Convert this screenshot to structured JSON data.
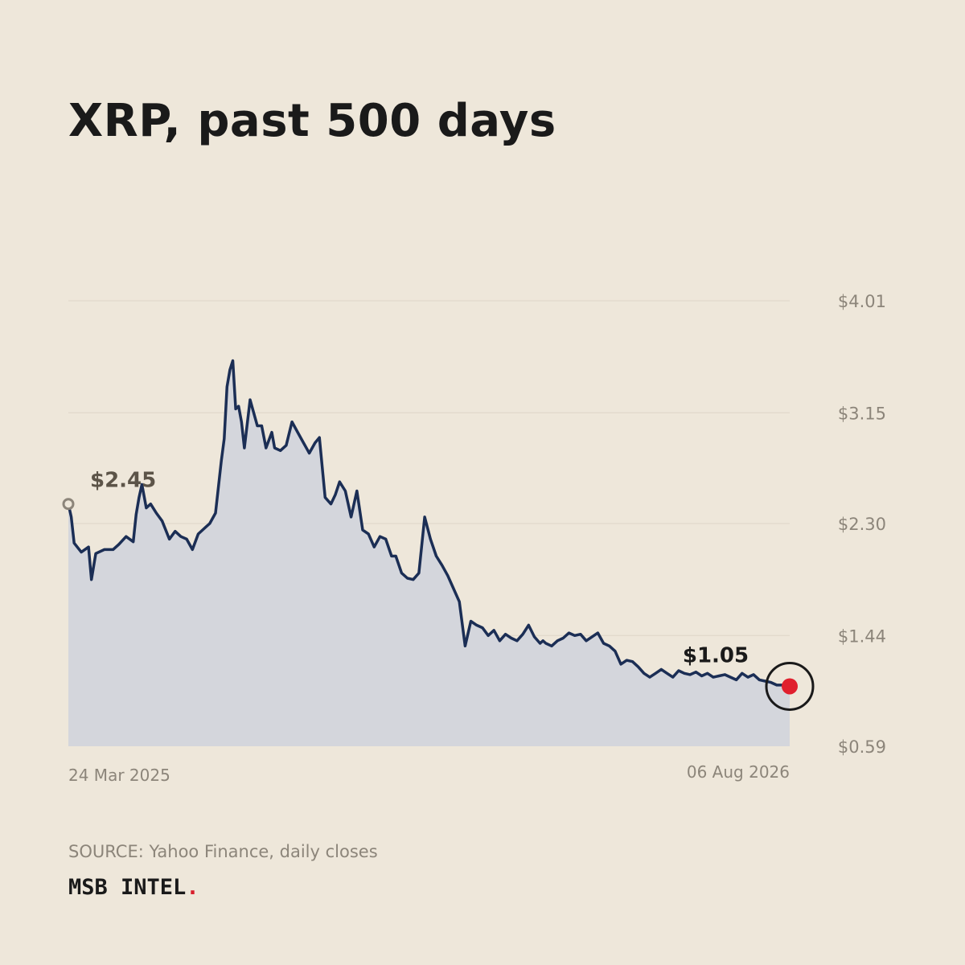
{
  "title": "XRP, past 500 days",
  "source": "SOURCE: Yahoo Finance, daily closes",
  "brand": {
    "name": "MSB INTEL",
    "dot": "."
  },
  "colors": {
    "background": "#EEE7DA",
    "line": "#1B2E55",
    "area": "#D4D6DC",
    "gridline": "#DDD5C8",
    "axis_text": "#8C857A",
    "start_marker": "#8C857A",
    "start_label": "#5C5448",
    "end_marker": "#E0202E",
    "end_label": "#1A1A1A",
    "brand_dot": "#D81E2C"
  },
  "chart_data": {
    "type": "area",
    "ylim": [
      0.59,
      4.01
    ],
    "y_ticks": [
      "$4.01",
      "$3.15",
      "$2.30",
      "$1.44",
      "$0.59"
    ],
    "y_tick_values": [
      4.01,
      3.15,
      2.3,
      1.44,
      0.59
    ],
    "x_labels": [
      "24 Mar 2025",
      "06 Aug 2026"
    ],
    "x_domain": [
      "2025-03-24",
      "2026-08-06"
    ],
    "grid": true,
    "start_value_label": "$2.45",
    "end_value_label": "$1.05",
    "series": [
      {
        "x": [
          "2025-03-24",
          "2025-03-26",
          "2025-03-28",
          "2025-04-02",
          "2025-04-07",
          "2025-04-09",
          "2025-04-12",
          "2025-04-18",
          "2025-04-24",
          "2025-04-28",
          "2025-05-03",
          "2025-05-08",
          "2025-05-10",
          "2025-05-12",
          "2025-05-14",
          "2025-05-17",
          "2025-05-20",
          "2025-05-24",
          "2025-05-28",
          "2025-06-02",
          "2025-06-06",
          "2025-06-10",
          "2025-06-14",
          "2025-06-18",
          "2025-06-22",
          "2025-06-26",
          "2025-06-30",
          "2025-07-04",
          "2025-07-08",
          "2025-07-10",
          "2025-07-12",
          "2025-07-14",
          "2025-07-16",
          "2025-07-18",
          "2025-07-20",
          "2025-07-22",
          "2025-07-24",
          "2025-07-28",
          "2025-08-02",
          "2025-08-05",
          "2025-08-08",
          "2025-08-12",
          "2025-08-14",
          "2025-08-18",
          "2025-08-22",
          "2025-08-26",
          "2025-08-30",
          "2025-09-03",
          "2025-09-07",
          "2025-09-11",
          "2025-09-14",
          "2025-09-18",
          "2025-09-22",
          "2025-09-25",
          "2025-09-28",
          "2025-10-02",
          "2025-10-06",
          "2025-10-10",
          "2025-10-12",
          "2025-10-14",
          "2025-10-18",
          "2025-10-22",
          "2025-10-26",
          "2025-10-30",
          "2025-11-03",
          "2025-11-06",
          "2025-11-10",
          "2025-11-14",
          "2025-11-18",
          "2025-11-22",
          "2025-11-26",
          "2025-11-30",
          "2025-12-04",
          "2025-12-08",
          "2025-12-12",
          "2025-12-16",
          "2025-12-20",
          "2025-12-24",
          "2025-12-28",
          "2026-01-01",
          "2026-01-05",
          "2026-01-09",
          "2026-01-13",
          "2026-01-17",
          "2026-01-21",
          "2026-01-25",
          "2026-01-29",
          "2026-02-02",
          "2026-02-06",
          "2026-02-10",
          "2026-02-14",
          "2026-02-16",
          "2026-02-18",
          "2026-02-22",
          "2026-02-26",
          "2026-03-02",
          "2026-03-06",
          "2026-03-10",
          "2026-03-14",
          "2026-03-18",
          "2026-03-22",
          "2026-03-26",
          "2026-03-30",
          "2026-04-03",
          "2026-04-07",
          "2026-04-11",
          "2026-04-15",
          "2026-04-19",
          "2026-04-23",
          "2026-04-27",
          "2026-05-01",
          "2026-05-05",
          "2026-05-09",
          "2026-05-13",
          "2026-05-17",
          "2026-05-21",
          "2026-05-25",
          "2026-05-29",
          "2026-06-02",
          "2026-06-06",
          "2026-06-10",
          "2026-06-14",
          "2026-06-18",
          "2026-06-22",
          "2026-06-26",
          "2026-06-30",
          "2026-07-04",
          "2026-07-08",
          "2026-07-12",
          "2026-07-16",
          "2026-07-20",
          "2026-07-24",
          "2026-07-28",
          "2026-08-01",
          "2026-08-06"
        ],
        "values": [
          2.45,
          2.35,
          2.15,
          2.08,
          2.12,
          1.87,
          2.07,
          2.1,
          2.1,
          2.14,
          2.2,
          2.16,
          2.37,
          2.5,
          2.6,
          2.42,
          2.45,
          2.38,
          2.32,
          2.18,
          2.24,
          2.2,
          2.18,
          2.1,
          2.22,
          2.26,
          2.3,
          2.38,
          2.78,
          2.95,
          3.35,
          3.48,
          3.55,
          3.18,
          3.2,
          3.08,
          2.88,
          3.25,
          3.05,
          3.05,
          2.88,
          3.0,
          2.88,
          2.86,
          2.9,
          3.08,
          3.0,
          2.92,
          2.84,
          2.92,
          2.96,
          2.5,
          2.45,
          2.52,
          2.62,
          2.55,
          2.35,
          2.55,
          2.4,
          2.25,
          2.22,
          2.12,
          2.2,
          2.18,
          2.05,
          2.05,
          1.92,
          1.88,
          1.87,
          1.92,
          2.35,
          2.18,
          2.05,
          1.98,
          1.9,
          1.8,
          1.7,
          1.36,
          1.55,
          1.52,
          1.5,
          1.44,
          1.48,
          1.4,
          1.45,
          1.42,
          1.4,
          1.45,
          1.52,
          1.43,
          1.38,
          1.4,
          1.38,
          1.36,
          1.4,
          1.42,
          1.46,
          1.44,
          1.45,
          1.4,
          1.43,
          1.46,
          1.38,
          1.36,
          1.32,
          1.22,
          1.25,
          1.24,
          1.2,
          1.15,
          1.12,
          1.15,
          1.18,
          1.15,
          1.12,
          1.17,
          1.15,
          1.14,
          1.16,
          1.13,
          1.15,
          1.12,
          1.13,
          1.14,
          1.12,
          1.1,
          1.15,
          1.12,
          1.14,
          1.1,
          1.09,
          1.08,
          1.06,
          1.06,
          1.05
        ]
      }
    ]
  }
}
